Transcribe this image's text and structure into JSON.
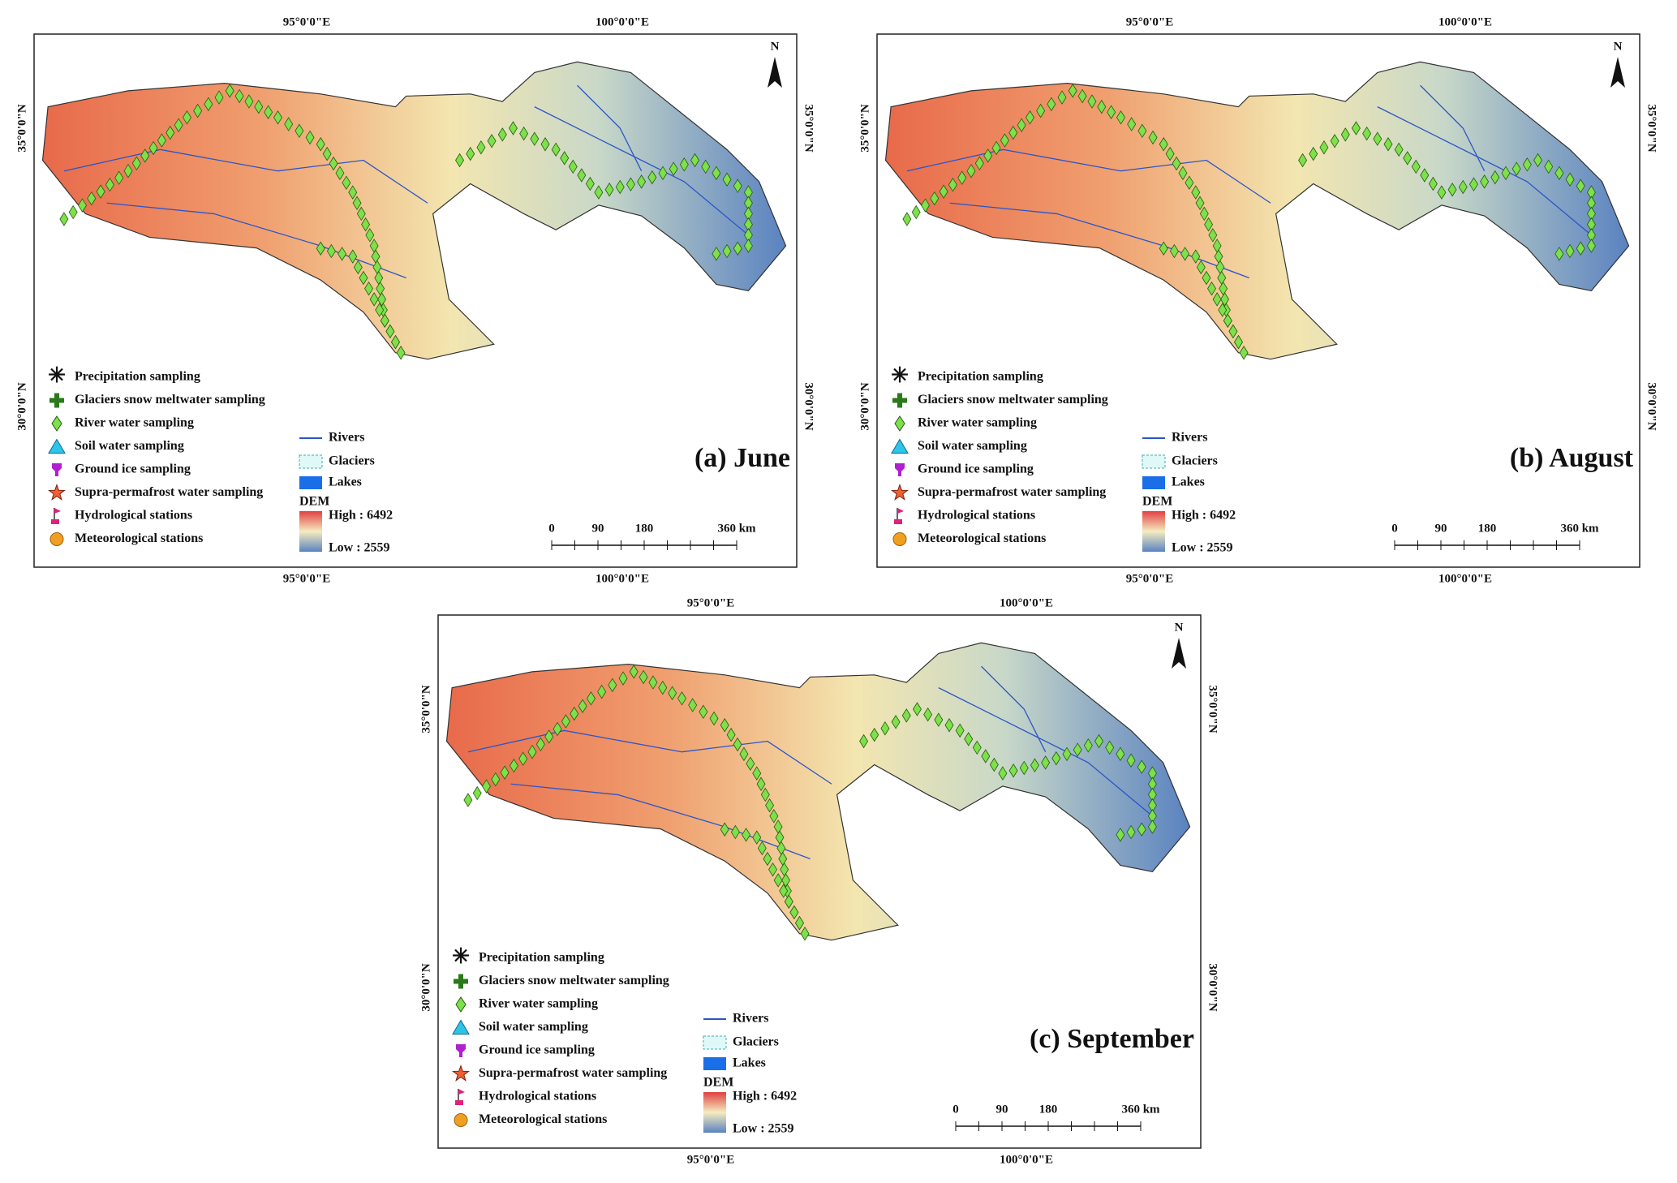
{
  "panels": [
    {
      "title": "(a) June"
    },
    {
      "title": "(b) August"
    },
    {
      "title": "(c) September"
    }
  ],
  "lon_labels": [
    "95°0'0\"E",
    "100°0'0\"E"
  ],
  "lat_labels": [
    "35°0'0\"N",
    "30°0'0\"N"
  ],
  "north": "N",
  "legend": {
    "items": [
      "Precipitation sampling",
      "Glaciers snow meltwater sampling",
      "River water sampling",
      "Soil water sampling",
      "Ground ice sampling",
      "Supra-permafrost water sampling",
      "Hydrological stations",
      "Meteorological stations"
    ],
    "layers": [
      "Rivers",
      "Glaciers",
      "Lakes"
    ],
    "dem_title": "DEM",
    "dem_high": "High : 6492",
    "dem_low": "Low : 2559"
  },
  "scale_bar": [
    "0",
    "90",
    "180",
    "360 km"
  ]
}
